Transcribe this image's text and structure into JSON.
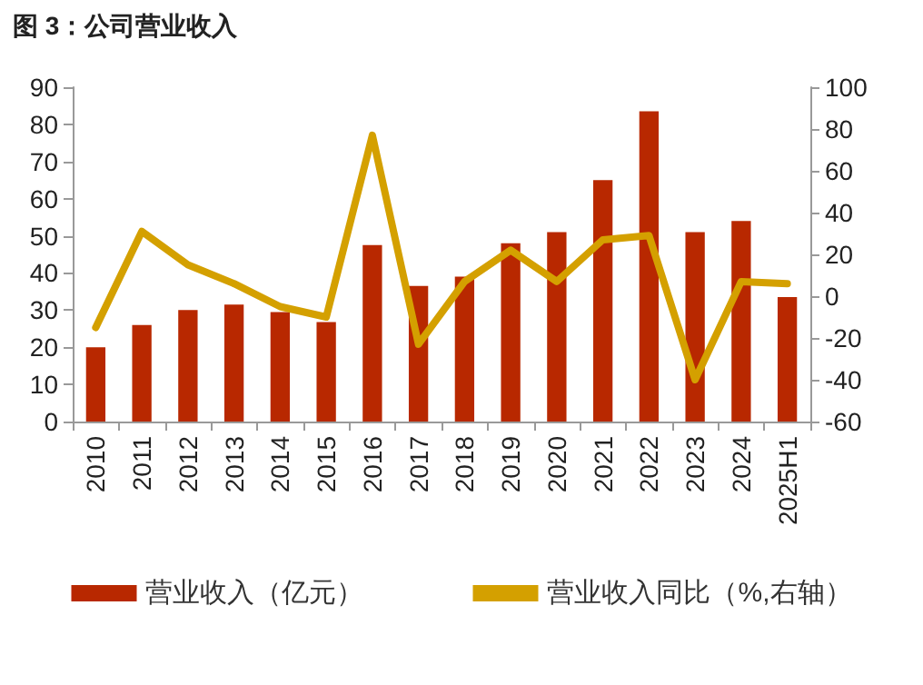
{
  "chart_data": {
    "type": "bar",
    "title": "图 3：公司营业收入",
    "categories": [
      "2010",
      "2011",
      "2012",
      "2013",
      "2014",
      "2015",
      "2016",
      "2017",
      "2018",
      "2019",
      "2020",
      "2021",
      "2022",
      "2023",
      "2024",
      "2025H1"
    ],
    "series": [
      {
        "name": "营业收入（亿元）",
        "color": "#b82800",
        "values": [
          20,
          26,
          30,
          31.5,
          29.5,
          26.8,
          47.5,
          36.5,
          39,
          48,
          51,
          65,
          83.5,
          51,
          54,
          33.5
        ]
      },
      {
        "name": "营业收入同比（%,右轴）",
        "type": "line",
        "axis": "y2",
        "color": "#d4a000",
        "values": [
          -15,
          31,
          15,
          6,
          -5,
          -10,
          77,
          -23,
          7,
          22,
          7,
          27,
          29,
          -40,
          7,
          6
        ]
      }
    ],
    "ylim": [
      0,
      90
    ],
    "yticks": [
      0,
      10,
      20,
      30,
      40,
      50,
      60,
      70,
      80,
      90
    ],
    "y2lim": [
      -60,
      100
    ],
    "y2ticks": [
      -60,
      -40,
      -20,
      0,
      20,
      40,
      60,
      80,
      100
    ],
    "legend": "bottom",
    "grid": false,
    "marker": "none",
    "line_style": "solid"
  }
}
